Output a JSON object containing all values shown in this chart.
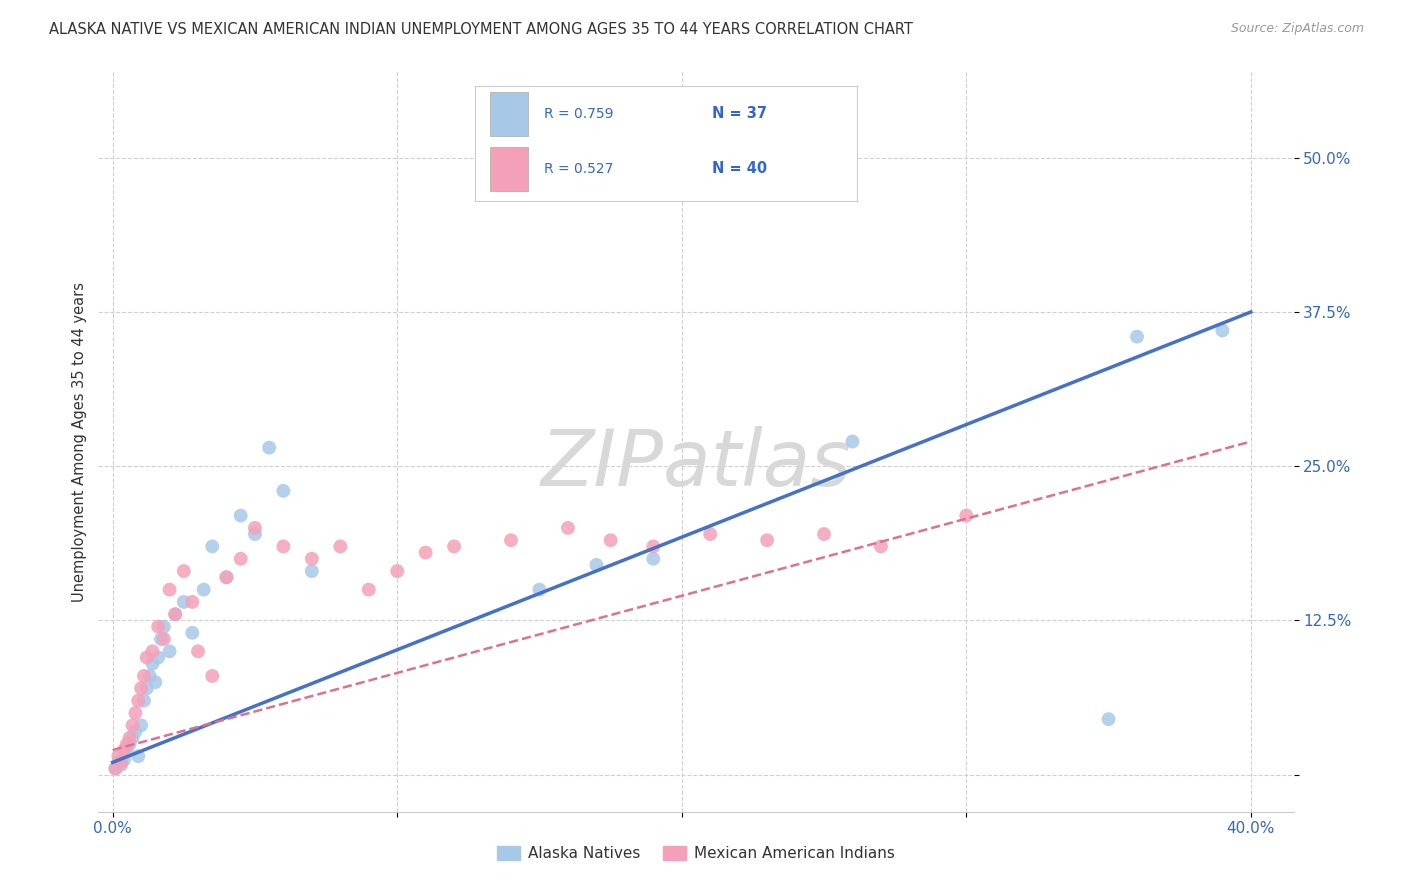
{
  "title": "ALASKA NATIVE VS MEXICAN AMERICAN INDIAN UNEMPLOYMENT AMONG AGES 35 TO 44 YEARS CORRELATION CHART",
  "source": "Source: ZipAtlas.com",
  "ylabel": "Unemployment Among Ages 35 to 44 years",
  "xlim": [
    -0.005,
    0.415
  ],
  "ylim": [
    -0.03,
    0.57
  ],
  "xticks": [
    0.0,
    0.1,
    0.2,
    0.3,
    0.4
  ],
  "xticklabels": [
    "0.0%",
    "",
    "",
    "",
    "40.0%"
  ],
  "ytick_positions": [
    0.0,
    0.125,
    0.25,
    0.375,
    0.5
  ],
  "ytick_labels": [
    "",
    "12.5%",
    "25.0%",
    "37.5%",
    "50.0%"
  ],
  "grid_color": "#d0d0d0",
  "background_color": "#ffffff",
  "watermark": "ZIPatlas",
  "blue_color": "#a8c8e8",
  "pink_color": "#f4a0b8",
  "blue_line_color": "#4472c4",
  "pink_line_color": "#e07090",
  "legend_r1": "R = 0.759",
  "legend_n1": "N = 37",
  "legend_r2": "R = 0.527",
  "legend_n2": "N = 40",
  "alaska_x": [
    0.001,
    0.002,
    0.003,
    0.004,
    0.005,
    0.006,
    0.007,
    0.008,
    0.009,
    0.01,
    0.011,
    0.012,
    0.013,
    0.014,
    0.015,
    0.016,
    0.017,
    0.018,
    0.02,
    0.022,
    0.025,
    0.028,
    0.032,
    0.035,
    0.04,
    0.045,
    0.05,
    0.055,
    0.06,
    0.07,
    0.15,
    0.17,
    0.19,
    0.26,
    0.35,
    0.36,
    0.39
  ],
  "alaska_y": [
    0.005,
    0.01,
    0.008,
    0.012,
    0.02,
    0.025,
    0.03,
    0.035,
    0.015,
    0.04,
    0.06,
    0.07,
    0.08,
    0.09,
    0.075,
    0.095,
    0.11,
    0.12,
    0.1,
    0.13,
    0.14,
    0.115,
    0.15,
    0.185,
    0.16,
    0.21,
    0.195,
    0.265,
    0.23,
    0.165,
    0.15,
    0.17,
    0.175,
    0.27,
    0.045,
    0.355,
    0.36
  ],
  "mexican_x": [
    0.001,
    0.002,
    0.003,
    0.004,
    0.005,
    0.006,
    0.007,
    0.008,
    0.009,
    0.01,
    0.011,
    0.012,
    0.014,
    0.016,
    0.018,
    0.02,
    0.022,
    0.025,
    0.028,
    0.03,
    0.035,
    0.04,
    0.045,
    0.05,
    0.06,
    0.07,
    0.08,
    0.09,
    0.1,
    0.11,
    0.12,
    0.14,
    0.16,
    0.175,
    0.19,
    0.21,
    0.23,
    0.25,
    0.27,
    0.3
  ],
  "mexican_y": [
    0.005,
    0.015,
    0.01,
    0.02,
    0.025,
    0.03,
    0.04,
    0.05,
    0.06,
    0.07,
    0.08,
    0.095,
    0.1,
    0.12,
    0.11,
    0.15,
    0.13,
    0.165,
    0.14,
    0.1,
    0.08,
    0.16,
    0.175,
    0.2,
    0.185,
    0.175,
    0.185,
    0.15,
    0.165,
    0.18,
    0.185,
    0.19,
    0.2,
    0.19,
    0.185,
    0.195,
    0.19,
    0.195,
    0.185,
    0.21
  ]
}
